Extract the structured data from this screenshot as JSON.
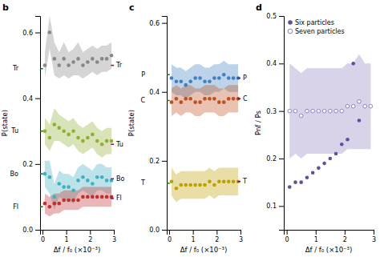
{
  "chart_data": [
    {
      "type": "scatter",
      "title": "b",
      "x_label": "Δf / f₀ (×10⁻³)",
      "y_label": "P(state)",
      "x": [
        0.1,
        0.3,
        0.5,
        0.7,
        0.9,
        1.1,
        1.3,
        1.5,
        1.7,
        1.9,
        2.1,
        2.3,
        2.5,
        2.7,
        2.9
      ],
      "series": [
        {
          "color": "#888888",
          "marker": "circle",
          "values": [
            0.5,
            0.6,
            0.52,
            0.5,
            0.52,
            0.5,
            0.51,
            0.52,
            0.5,
            0.51,
            0.52,
            0.51,
            0.52,
            0.52,
            0.53
          ],
          "lo": [
            0.46,
            0.55,
            0.47,
            0.46,
            0.47,
            0.46,
            0.47,
            0.47,
            0.46,
            0.47,
            0.48,
            0.47,
            0.48,
            0.48,
            0.49
          ],
          "hi": [
            0.54,
            0.65,
            0.57,
            0.54,
            0.57,
            0.54,
            0.55,
            0.57,
            0.54,
            0.55,
            0.56,
            0.55,
            0.56,
            0.56,
            0.57
          ]
        },
        {
          "color": "#90b030",
          "marker": "circle",
          "values": [
            0.3,
            0.28,
            0.32,
            0.31,
            0.3,
            0.29,
            0.3,
            0.28,
            0.27,
            0.28,
            0.29,
            0.27,
            0.26,
            0.27,
            0.27
          ],
          "lo": [
            0.26,
            0.24,
            0.27,
            0.27,
            0.26,
            0.25,
            0.26,
            0.24,
            0.23,
            0.24,
            0.25,
            0.23,
            0.22,
            0.23,
            0.23
          ],
          "hi": [
            0.34,
            0.32,
            0.37,
            0.35,
            0.34,
            0.33,
            0.34,
            0.32,
            0.31,
            0.32,
            0.33,
            0.31,
            0.3,
            0.31,
            0.31
          ]
        },
        {
          "color": "#40b0c0",
          "marker": "circle",
          "values": [
            0.17,
            0.16,
            0.1,
            0.14,
            0.13,
            0.13,
            0.12,
            0.15,
            0.16,
            0.15,
            0.14,
            0.16,
            0.16,
            0.15,
            0.15
          ],
          "lo": [
            0.13,
            0.11,
            0.06,
            0.1,
            0.09,
            0.09,
            0.08,
            0.11,
            0.12,
            0.11,
            0.1,
            0.12,
            0.12,
            0.11,
            0.11
          ],
          "hi": [
            0.21,
            0.21,
            0.14,
            0.18,
            0.17,
            0.17,
            0.16,
            0.19,
            0.2,
            0.19,
            0.18,
            0.2,
            0.2,
            0.19,
            0.19
          ]
        },
        {
          "color": "#c03030",
          "marker": "circle",
          "values": [
            0.08,
            0.07,
            0.08,
            0.08,
            0.09,
            0.09,
            0.09,
            0.09,
            0.1,
            0.1,
            0.1,
            0.1,
            0.1,
            0.1,
            0.1
          ],
          "lo": [
            0.05,
            0.04,
            0.05,
            0.05,
            0.06,
            0.06,
            0.06,
            0.06,
            0.07,
            0.07,
            0.07,
            0.07,
            0.07,
            0.07,
            0.07
          ],
          "hi": [
            0.11,
            0.1,
            0.11,
            0.11,
            0.12,
            0.12,
            0.12,
            0.12,
            0.13,
            0.13,
            0.13,
            0.13,
            0.13,
            0.13,
            0.13
          ]
        }
      ],
      "start_lines": {
        "color": "green",
        "lines": [
          {
            "label": "Tr",
            "value": 0.49
          },
          {
            "label": "Tu",
            "value": 0.3
          },
          {
            "label": "Bo",
            "value": 0.17
          },
          {
            "label": "Fl",
            "value": 0.07
          }
        ]
      },
      "end_lines": {
        "color": "purple",
        "lines": [
          {
            "label": "Tr",
            "value": 0.5
          },
          {
            "label": "Tu",
            "value": 0.26
          },
          {
            "label": "Bo",
            "value": 0.155
          },
          {
            "label": "Fl",
            "value": 0.095
          }
        ]
      },
      "xlim": [
        -0.1,
        3.0
      ],
      "ylim": [
        0,
        0.65
      ],
      "xticks": [
        0,
        1,
        2,
        3
      ],
      "yticks": [
        {
          "value": 0,
          "label": "0.0"
        },
        0.2,
        0.4,
        0.6
      ],
      "grid": false
    },
    {
      "type": "scatter",
      "title": "c",
      "x_label": "Δf / f₀ (×10⁻³)",
      "y_label": "P(state)",
      "x": [
        0.1,
        0.3,
        0.5,
        0.7,
        0.9,
        1.1,
        1.3,
        1.5,
        1.7,
        1.9,
        2.1,
        2.3,
        2.5,
        2.7,
        2.9
      ],
      "series": [
        {
          "color": "#4080c0",
          "marker": "circle",
          "values": [
            0.44,
            0.43,
            0.43,
            0.42,
            0.43,
            0.44,
            0.44,
            0.43,
            0.43,
            0.44,
            0.44,
            0.45,
            0.44,
            0.44,
            0.44
          ],
          "lo": [
            0.4,
            0.39,
            0.39,
            0.38,
            0.39,
            0.4,
            0.4,
            0.39,
            0.39,
            0.4,
            0.4,
            0.41,
            0.4,
            0.4,
            0.4
          ],
          "hi": [
            0.48,
            0.47,
            0.47,
            0.46,
            0.47,
            0.48,
            0.48,
            0.47,
            0.47,
            0.48,
            0.48,
            0.49,
            0.48,
            0.48,
            0.48
          ]
        },
        {
          "color": "#c05020",
          "marker": "circle",
          "values": [
            0.37,
            0.38,
            0.37,
            0.38,
            0.38,
            0.37,
            0.37,
            0.38,
            0.38,
            0.38,
            0.37,
            0.37,
            0.38,
            0.38,
            0.38
          ],
          "lo": [
            0.33,
            0.34,
            0.33,
            0.34,
            0.34,
            0.33,
            0.33,
            0.34,
            0.34,
            0.34,
            0.33,
            0.33,
            0.34,
            0.34,
            0.34
          ],
          "hi": [
            0.41,
            0.42,
            0.41,
            0.42,
            0.42,
            0.41,
            0.41,
            0.42,
            0.42,
            0.42,
            0.41,
            0.41,
            0.42,
            0.42,
            0.42
          ]
        },
        {
          "color": "#c0a000",
          "marker": "circle",
          "values": [
            0.14,
            0.12,
            0.13,
            0.13,
            0.13,
            0.13,
            0.13,
            0.13,
            0.14,
            0.13,
            0.14,
            0.14,
            0.14,
            0.14,
            0.14
          ],
          "lo": [
            0.1,
            0.08,
            0.09,
            0.09,
            0.09,
            0.09,
            0.09,
            0.09,
            0.1,
            0.09,
            0.1,
            0.1,
            0.1,
            0.1,
            0.1
          ],
          "hi": [
            0.18,
            0.16,
            0.17,
            0.17,
            0.17,
            0.17,
            0.17,
            0.17,
            0.18,
            0.17,
            0.18,
            0.18,
            0.18,
            0.18,
            0.18
          ]
        }
      ],
      "start_lines": {
        "color": "green",
        "lines": [
          {
            "label": "P",
            "value": 0.45
          },
          {
            "label": "C",
            "value": 0.375
          },
          {
            "label": "T",
            "value": 0.135
          }
        ]
      },
      "end_lines": {
        "color": "purple",
        "lines": [
          {
            "label": "P",
            "value": 0.44
          },
          {
            "label": "C",
            "value": 0.38
          },
          {
            "label": "T",
            "value": 0.14
          }
        ]
      },
      "xlim": [
        -0.1,
        3.0
      ],
      "ylim": [
        0,
        0.62
      ],
      "xticks": [
        0,
        1,
        2,
        3
      ],
      "yticks": [
        {
          "value": 0,
          "label": "0.0"
        },
        0.2,
        0.4,
        0.6
      ],
      "grid": false
    },
    {
      "type": "scatter",
      "title": "d",
      "x_label": "Δf / f₀ (×10⁻³)",
      "y_label": "Pnf / Ps",
      "series": [
        {
          "name": "Six particles",
          "color": "#6050a0",
          "marker": "circle",
          "x": [
            0.1,
            0.3,
            0.5,
            0.7,
            0.9,
            1.1,
            1.3,
            1.5,
            1.7,
            1.9,
            2.1,
            2.3,
            2.5
          ],
          "values": [
            0.14,
            0.15,
            0.15,
            0.16,
            0.17,
            0.18,
            0.19,
            0.2,
            0.21,
            0.23,
            0.24,
            0.4,
            0.28
          ]
        },
        {
          "name": "Seven particles",
          "color": "#9080c0",
          "marker": "open-circle",
          "x": [
            0.1,
            0.3,
            0.5,
            0.7,
            0.9,
            1.1,
            1.3,
            1.5,
            1.7,
            1.9,
            2.1,
            2.3,
            2.5,
            2.7,
            2.9
          ],
          "values": [
            0.3,
            0.3,
            0.29,
            0.3,
            0.3,
            0.3,
            0.3,
            0.3,
            0.3,
            0.3,
            0.31,
            0.31,
            0.32,
            0.31,
            0.31
          ],
          "lo": [
            0.2,
            0.21,
            0.2,
            0.21,
            0.21,
            0.21,
            0.21,
            0.21,
            0.21,
            0.21,
            0.22,
            0.22,
            0.22,
            0.22,
            0.22
          ],
          "hi": [
            0.4,
            0.39,
            0.38,
            0.39,
            0.39,
            0.39,
            0.39,
            0.39,
            0.39,
            0.39,
            0.4,
            0.4,
            0.42,
            0.4,
            0.4
          ]
        }
      ],
      "legend": "upper left",
      "xlim": [
        -0.1,
        3.0
      ],
      "ylim": [
        0.05,
        0.5
      ],
      "xticks": [
        0,
        1,
        2,
        3
      ],
      "yticks": [
        0.1,
        0.2,
        0.3,
        0.4,
        0.5
      ],
      "grid": false
    }
  ]
}
